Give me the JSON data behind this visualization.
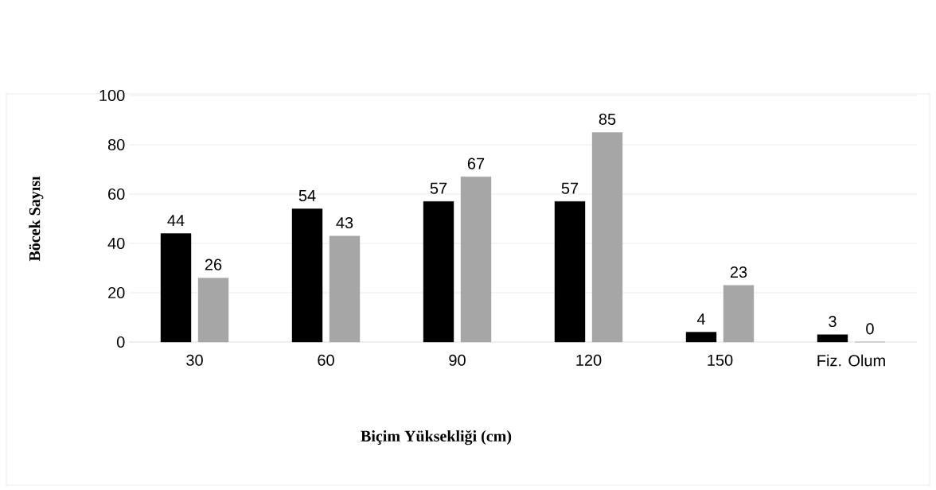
{
  "chart_data": {
    "type": "bar",
    "xlabel": "Biçim Yüksekliği (cm)",
    "ylabel": "Böcek Sayısı",
    "categories": [
      "30",
      "60",
      "90",
      "120",
      "150",
      "Fiz. Olum"
    ],
    "series": [
      {
        "color": "#000000",
        "values": [
          44,
          54,
          57,
          57,
          4,
          3
        ]
      },
      {
        "color": "#a6a6a6",
        "values": [
          26,
          43,
          67,
          85,
          23,
          0
        ]
      }
    ],
    "ylim": [
      0,
      100
    ],
    "yticks": [
      0,
      20,
      40,
      60,
      80,
      100
    ],
    "grid": "y",
    "data_labels": true
  }
}
